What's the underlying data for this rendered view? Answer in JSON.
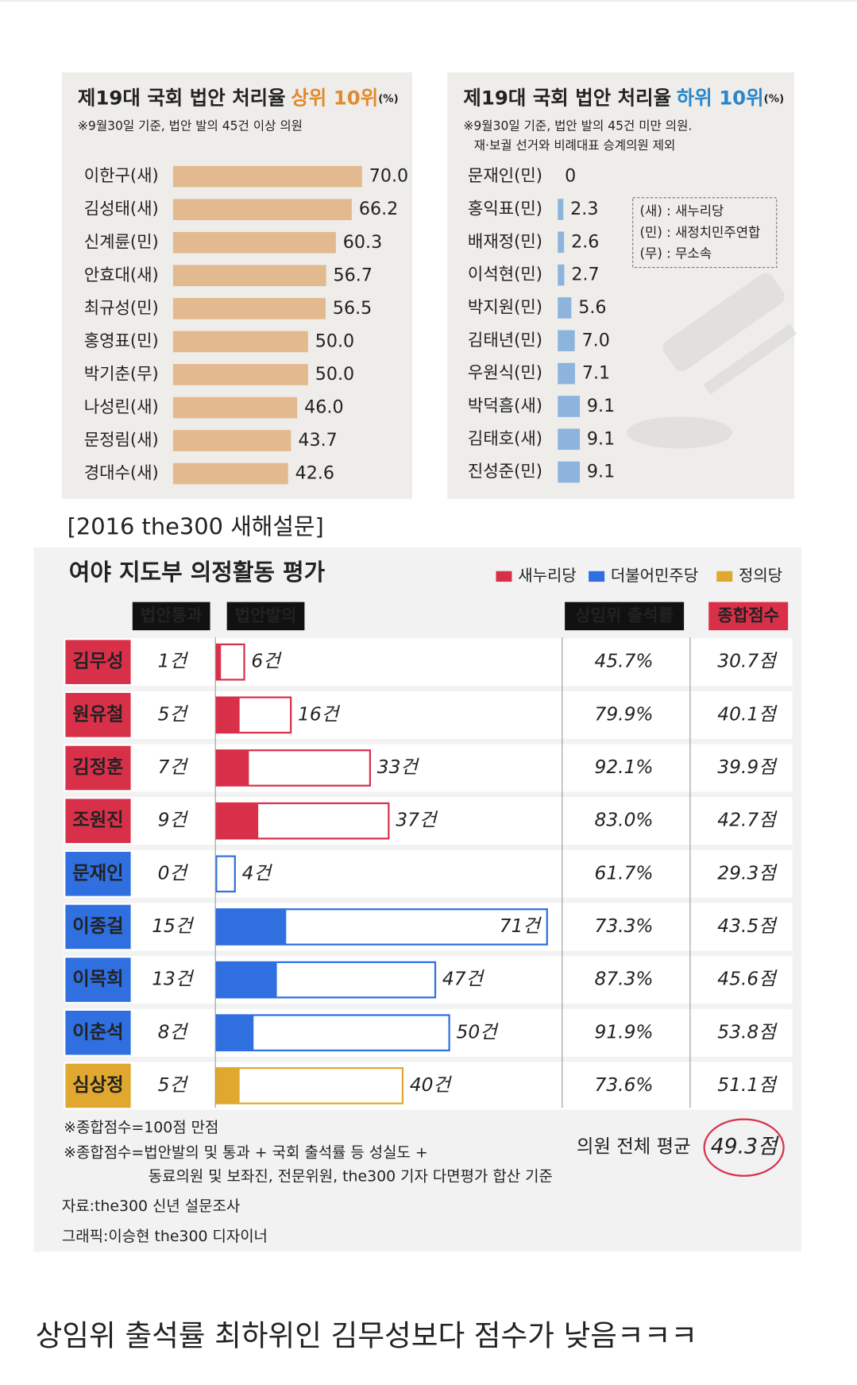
{
  "chart_data": [
    {
      "type": "bar",
      "title": "제19대 국회 법안 처리율",
      "title_highlight": "상위 10위",
      "title_highlight_color": "#e08a2c",
      "unit": "(%)",
      "subtitle": [
        "※9월30일 기준, 법안 발의 45건 이상 의원"
      ],
      "categories": [
        "이한구(새)",
        "김성태(새)",
        "신계륜(민)",
        "안효대(새)",
        "최규성(민)",
        "홍영표(민)",
        "박기춘(무)",
        "나성린(새)",
        "문정림(새)",
        "경대수(새)"
      ],
      "values": [
        70.0,
        66.2,
        60.3,
        56.7,
        56.5,
        50.0,
        50.0,
        46.0,
        43.7,
        42.6
      ],
      "value_labels": [
        "70.0",
        "66.2",
        "60.3",
        "56.7",
        "56.5",
        "50.0",
        "50.0",
        "46.0",
        "43.7",
        "42.6"
      ],
      "color": "#e3b98f"
    },
    {
      "type": "bar",
      "title": "제19대 국회 법안 처리율",
      "title_highlight": "하위 10위",
      "title_highlight_color": "#2a86c8",
      "unit": "(%)",
      "subtitle": [
        "※9월30일 기준, 법안 발의 45건 미만 의원.",
        "재·보궐 선거와 비례대표 승계의원 제외"
      ],
      "categories": [
        "문재인(민)",
        "홍익표(민)",
        "배재정(민)",
        "이석현(민)",
        "박지원(민)",
        "김태년(민)",
        "우원식(민)",
        "박덕흠(새)",
        "김태호(새)",
        "진성준(민)"
      ],
      "values": [
        0,
        2.3,
        2.6,
        2.7,
        5.6,
        7.0,
        7.1,
        9.1,
        9.1,
        9.1
      ],
      "value_labels": [
        "0",
        "2.3",
        "2.6",
        "2.7",
        "5.6",
        "7.0",
        "7.1",
        "9.1",
        "9.1",
        "9.1"
      ],
      "color": "#8db4dc",
      "notes": [
        "(새) : 새누리당",
        "(민) : 새정치민주연합",
        "(무) : 무소속"
      ]
    },
    {
      "type": "scorecard",
      "title": "여야 지도부 의정활동 평가",
      "legend": [
        {
          "name": "새누리당",
          "color": "#d9304a"
        },
        {
          "name": "더불어민주당",
          "color": "#2f6fe0"
        },
        {
          "name": "정의당",
          "color": "#e0a82e"
        }
      ],
      "categories": [
        "김무성",
        "원유철",
        "김정훈",
        "조원진",
        "문재인",
        "이종걸",
        "이목희",
        "이춘석",
        "심상정"
      ],
      "category_colors": [
        "#d9304a",
        "#d9304a",
        "#d9304a",
        "#d9304a",
        "#2f6fe0",
        "#2f6fe0",
        "#2f6fe0",
        "#2f6fe0",
        "#e0a82e"
      ],
      "series": [
        {
          "name": "법안통과",
          "values": [
            1,
            5,
            7,
            9,
            0,
            15,
            13,
            8,
            5
          ],
          "value_labels": [
            "1건",
            "5건",
            "7건",
            "9건",
            "0건",
            "15건",
            "13건",
            "8건",
            "5건"
          ]
        },
        {
          "name": "법안발의",
          "values": [
            6,
            16,
            33,
            37,
            4,
            71,
            47,
            50,
            40
          ],
          "value_labels": [
            "6건",
            "16건",
            "33건",
            "37건",
            "4건",
            "71건",
            "47건",
            "50건",
            "40건"
          ]
        },
        {
          "name": "상임위 출석률",
          "values": [
            45.7,
            79.9,
            92.1,
            83.0,
            61.7,
            73.3,
            87.3,
            91.9,
            73.6
          ],
          "value_labels": [
            "45.7%",
            "79.9%",
            "92.1%",
            "83.0%",
            "61.7%",
            "73.3%",
            "87.3%",
            "91.9%",
            "73.6%"
          ]
        },
        {
          "name": "종합점수",
          "values": [
            30.7,
            40.1,
            39.9,
            42.7,
            29.3,
            43.5,
            45.6,
            53.8,
            51.1
          ],
          "value_labels": [
            "30.7점",
            "40.1점",
            "39.9점",
            "42.7점",
            "29.3점",
            "43.5점",
            "45.6점",
            "53.8점",
            "51.1점"
          ]
        }
      ],
      "average_label": "의원 전체 평균",
      "average": 49.3,
      "average_value_label": "49.3점",
      "notes": [
        "※종합점수=100점 만점",
        "※종합점수=법안발의 및 통과 + 국회 출석률 등 성실도 +",
        "동료의원 및 보좌진, 전문위원, the300 기자 다면평가 합산 기준"
      ],
      "source": "자료:the300 신년 설문조사",
      "credit": "그래픽:이승현 the300 디자이너"
    }
  ],
  "survey_label": "[2016 the300 새해설문]",
  "caption": "상임위 출석률 최하위인 김무성보다 점수가 낮음ㅋㅋㅋ"
}
